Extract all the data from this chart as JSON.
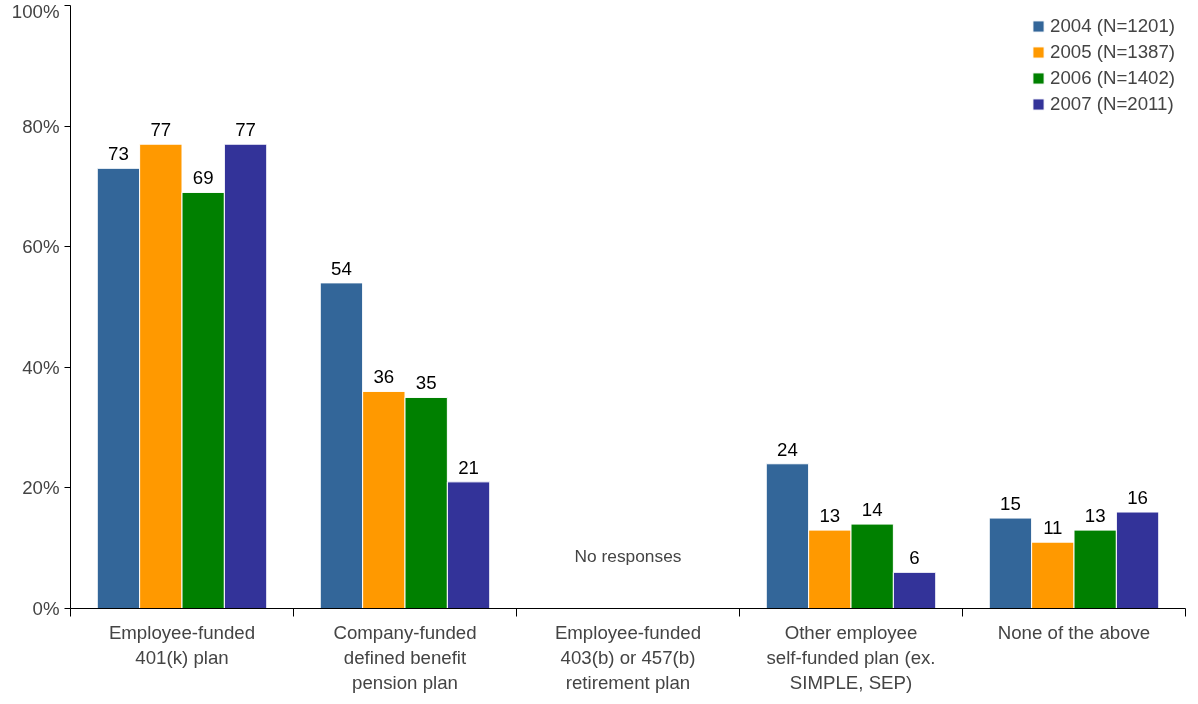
{
  "chart_data": {
    "type": "bar",
    "categories": [
      "Employee-funded 401(k) plan",
      "Company-funded defined benefit pension plan",
      "Employee-funded 403(b) or 457(b) retirement plan",
      "Other employee self-funded plan (ex. SIMPLE, SEP)",
      "None of the above"
    ],
    "series": [
      {
        "name": "2004 (N=1201)",
        "color": "#336699",
        "values": [
          73,
          54,
          null,
          24,
          15
        ]
      },
      {
        "name": "2005 (N=1387)",
        "color": "#ff9900",
        "values": [
          77,
          36,
          null,
          13,
          11
        ]
      },
      {
        "name": "2006 (N=1402)",
        "color": "#008000",
        "values": [
          69,
          35,
          null,
          14,
          13
        ]
      },
      {
        "name": "2007 (N=2011)",
        "color": "#333399",
        "values": [
          77,
          21,
          null,
          6,
          16
        ]
      }
    ],
    "ylim": [
      0,
      100
    ],
    "yticks": [
      {
        "value": 0,
        "label": "0%"
      },
      {
        "value": 20,
        "label": "20%"
      },
      {
        "value": 40,
        "label": "40%"
      },
      {
        "value": 60,
        "label": "60%"
      },
      {
        "value": 80,
        "label": "80%"
      },
      {
        "value": 100,
        "label": "100%"
      }
    ],
    "annotations": [
      "No responses"
    ],
    "data_labels": true,
    "grid": false,
    "legend": "top right"
  }
}
